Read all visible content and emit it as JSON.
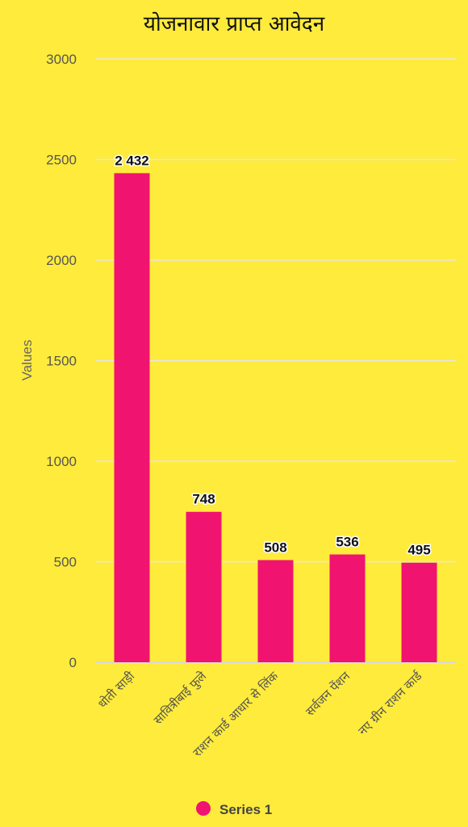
{
  "chart_data": {
    "type": "bar",
    "title": "योजनावार प्राप्त आवेदन",
    "xlabel": "",
    "ylabel": "Values",
    "categories": [
      "धोती साड़ी",
      "सावित्रीबाई फुले",
      "राशन कार्ड आधार से लिंक",
      "सर्वजन पेंशन",
      "नए ग्रीन राशन कार्ड"
    ],
    "series": [
      {
        "name": "Series 1",
        "values": [
          2432,
          748,
          508,
          536,
          495
        ],
        "color": "#F0136F"
      }
    ],
    "data_labels": [
      "2 432",
      "748",
      "508",
      "536",
      "495"
    ],
    "yticks": [
      "0",
      "500",
      "1000",
      "1500",
      "2000",
      "2500",
      "3000"
    ],
    "ylim": [
      0,
      3000
    ],
    "grid": true,
    "legend_position": "bottom"
  }
}
